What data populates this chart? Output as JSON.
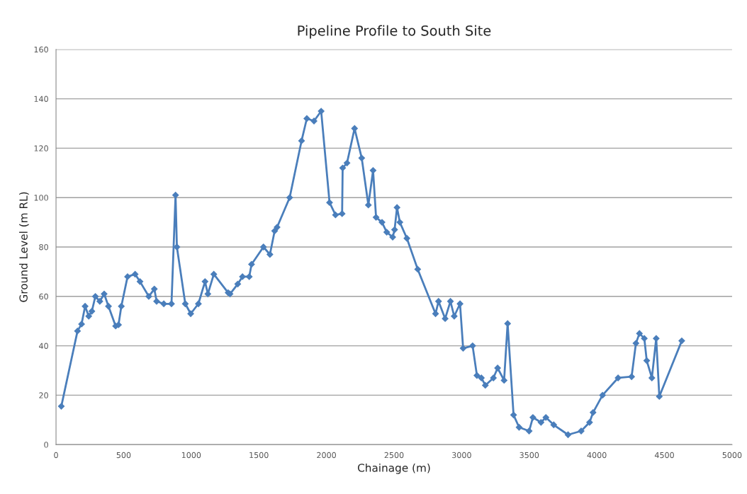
{
  "chart_data": {
    "type": "line",
    "title": "Pipeline Profile to South Site",
    "xlabel": "Chainage (m)",
    "ylabel": "Ground Level (m RL)",
    "series": [
      {
        "color": "#4a7ebb",
        "x": [
          39,
          159,
          189,
          215,
          242,
          265,
          291,
          324,
          356,
          388,
          441,
          462,
          483,
          529,
          585,
          621,
          686,
          727,
          744,
          797,
          854,
          884,
          894,
          956,
          996,
          1053,
          1102,
          1123,
          1167,
          1273,
          1287,
          1344,
          1379,
          1429,
          1446,
          1534,
          1582,
          1617,
          1635,
          1728,
          1816,
          1855,
          1908,
          1961,
          2023,
          2067,
          2116,
          2120,
          2152,
          2208,
          2261,
          2310,
          2345,
          2367,
          2411,
          2446,
          2490,
          2504,
          2522,
          2543,
          2595,
          2675,
          2807,
          2829,
          2878,
          2917,
          2945,
          2988,
          3011,
          3081,
          3113,
          3146,
          3175,
          3235,
          3266,
          3314,
          3340,
          3384,
          3425,
          3499,
          3527,
          3587,
          3623,
          3681,
          3787,
          3884,
          3946,
          3972,
          4042,
          4157,
          4257,
          4289,
          4315,
          4351,
          4369,
          4407,
          4439,
          4462,
          4628
        ],
        "values": [
          15.5,
          46,
          48.8,
          56,
          52,
          54,
          60,
          58,
          61,
          56,
          48,
          48.5,
          56,
          68,
          69,
          66,
          60,
          63,
          58,
          57,
          57,
          101,
          80,
          57,
          53,
          57,
          66,
          61,
          69,
          61.5,
          61,
          65,
          68,
          68,
          73,
          80,
          77,
          86.5,
          88,
          100,
          123,
          132,
          131,
          135,
          98,
          93,
          93.5,
          112,
          114,
          128,
          116,
          97,
          111,
          92,
          90,
          86,
          84,
          87,
          96,
          90,
          83.5,
          71,
          53,
          58,
          51,
          58,
          52,
          57,
          39,
          40,
          28,
          27,
          24,
          27,
          31,
          26,
          49,
          12,
          7,
          5.5,
          11,
          9,
          11,
          8,
          4,
          5.5,
          9,
          13,
          20,
          27,
          27.5,
          41,
          45,
          43,
          34,
          27,
          43,
          19.5,
          42
        ]
      }
    ],
    "xlim": [
      0,
      5000
    ],
    "xticks": [
      0,
      500,
      1000,
      1500,
      2000,
      2500,
      3000,
      3500,
      4000,
      4500,
      5000
    ],
    "ylim": [
      0,
      160
    ],
    "yticks": [
      0,
      20,
      40,
      60,
      80,
      100,
      120,
      140,
      160
    ],
    "grid": "y",
    "marker": "diamond",
    "line_style": "solid"
  }
}
